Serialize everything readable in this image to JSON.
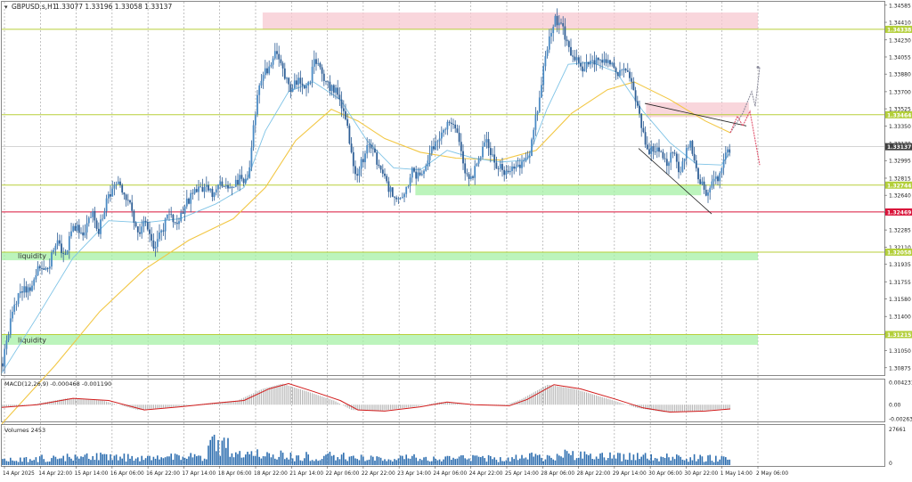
{
  "header": {
    "symbol_label": "GBPUSD.s,H1",
    "ohlc_label": "1.33077 1.33196 1.33058 1.33137"
  },
  "colors": {
    "candle_up": "#4a8ac4",
    "candle_down": "#2f5f96",
    "ma_fast": "#7ec3e6",
    "ma_slow": "#f2c744",
    "level_line": "#b8cf3a",
    "support_line": "#d9143a",
    "zone_green": "#a6f0a6",
    "zone_pink": "#f7c8d0",
    "macd_signal": "#d11a1a",
    "histogram": "#b8b8b8",
    "volume": "#2f6fb0",
    "projection_gray": "#8a8a9a",
    "projection_red": "#e0506a",
    "price_tag_bg": "#b3cf3a",
    "current_price_bg": "#404040",
    "support_tag_bg": "#d9143a"
  },
  "price_axis": {
    "ticks": [
      "1.34585",
      "1.34410",
      "1.34230",
      "1.34055",
      "1.33880",
      "1.33700",
      "1.33525",
      "1.33350",
      "1.33170",
      "1.32995",
      "1.32815",
      "1.32640",
      "1.32465",
      "1.32285",
      "1.32110",
      "1.31935",
      "1.31755",
      "1.31580",
      "1.31400",
      "1.31225",
      "1.31050",
      "1.30875"
    ],
    "ylim": [
      1.308,
      1.3462
    ],
    "tags": [
      {
        "name": "level-1-34338",
        "label": "1.34338",
        "price": 1.34338,
        "kind": "level"
      },
      {
        "name": "level-1-33464",
        "label": "1.33464",
        "price": 1.33464,
        "kind": "level"
      },
      {
        "name": "current-price",
        "label": "1.33137",
        "price": 1.33137,
        "kind": "current"
      },
      {
        "name": "level-1-32744",
        "label": "1.32744",
        "price": 1.32744,
        "kind": "level"
      },
      {
        "name": "support-1-32469",
        "label": "1.32469",
        "price": 1.32469,
        "kind": "support"
      },
      {
        "name": "level-1-32058",
        "label": "1.32058",
        "price": 1.32058,
        "kind": "level"
      },
      {
        "name": "level-1-31215",
        "label": "1.31215",
        "price": 1.31215,
        "kind": "level"
      }
    ]
  },
  "zones": [
    {
      "name": "supply-zone-top",
      "x0": 0.345,
      "x1": 1.0,
      "p_hi": 1.3451,
      "p_lo": 1.3434,
      "kind": "pink"
    },
    {
      "name": "supply-zone-right",
      "x0": 0.852,
      "x1": 0.988,
      "p_hi": 1.3359,
      "p_lo": 1.3344,
      "kind": "pink"
    },
    {
      "name": "demand-zone-mid",
      "x0": 0.547,
      "x1": 0.925,
      "p_hi": 1.32744,
      "p_lo": 1.3264,
      "kind": "green"
    },
    {
      "name": "liquidity-zone-upper",
      "x0": 0.0,
      "x1": 1.0,
      "p_hi": 1.32058,
      "p_lo": 1.31975,
      "kind": "green"
    },
    {
      "name": "liquidity-zone-lower",
      "x0": 0.0,
      "x1": 1.0,
      "p_hi": 1.31215,
      "p_lo": 1.3111,
      "kind": "green"
    }
  ],
  "zone_labels": [
    {
      "name": "liquidity-label-upper",
      "text": "liquidity",
      "price": 1.3202
    },
    {
      "name": "liquidity-label-lower",
      "text": "liquidity",
      "price": 1.3116
    }
  ],
  "time_axis": {
    "labels": [
      "14 Apr 2025",
      "14 Apr 22:00",
      "15 Apr 14:00",
      "16 Apr 06:00",
      "16 Apr 22:00",
      "17 Apr 14:00",
      "18 Apr 06:00",
      "18 Apr 22:00",
      "21 Apr 14:00",
      "22 Apr 06:00",
      "22 Apr 22:00",
      "23 Apr 14:00",
      "24 Apr 06:00",
      "24 Apr 22:00",
      "25 Apr 14:00",
      "28 Apr 06:00",
      "28 Apr 22:00",
      "29 Apr 14:00",
      "30 Apr 06:00",
      "30 Apr 22:00",
      "1 May 14:00",
      "2 May 06:00"
    ]
  },
  "macd": {
    "label": "MACD(12,26,9) -0.000468 -0.001190",
    "ticks": [
      "0.004231",
      "0.00",
      "-0.002632"
    ],
    "ylim": [
      -0.003,
      0.0046
    ]
  },
  "volumes": {
    "label": "Volumes 2453",
    "ticks": [
      "27661",
      "0"
    ],
    "ylim": [
      0,
      27661
    ]
  },
  "chart_data": {
    "type": "candlestick",
    "symbol": "GBPUSD",
    "timeframe": "H1",
    "indicators": [
      "MA (fast)",
      "MA (slow)",
      "MACD(12,26,9)",
      "Volumes"
    ],
    "price_path": [
      [
        0,
        1.3092
      ],
      [
        10,
        1.3141
      ],
      [
        20,
        1.317
      ],
      [
        30,
        1.3165
      ],
      [
        40,
        1.319
      ],
      [
        50,
        1.3188
      ],
      [
        60,
        1.3215
      ],
      [
        70,
        1.3205
      ],
      [
        80,
        1.3232
      ],
      [
        90,
        1.3225
      ],
      [
        100,
        1.3246
      ],
      [
        108,
        1.3228
      ],
      [
        118,
        1.3262
      ],
      [
        128,
        1.3276
      ],
      [
        138,
        1.3262
      ],
      [
        145,
        1.3248
      ],
      [
        152,
        1.3225
      ],
      [
        160,
        1.3236
      ],
      [
        170,
        1.3212
      ],
      [
        178,
        1.3226
      ],
      [
        186,
        1.3246
      ],
      [
        196,
        1.3232
      ],
      [
        206,
        1.3256
      ],
      [
        216,
        1.3268
      ],
      [
        226,
        1.3272
      ],
      [
        236,
        1.3264
      ],
      [
        246,
        1.3278
      ],
      [
        256,
        1.3272
      ],
      [
        266,
        1.328
      ],
      [
        276,
        1.3282
      ],
      [
        282,
        1.334
      ],
      [
        290,
        1.3385
      ],
      [
        298,
        1.3392
      ],
      [
        305,
        1.3408
      ],
      [
        314,
        1.3396
      ],
      [
        322,
        1.337
      ],
      [
        332,
        1.3382
      ],
      [
        342,
        1.3372
      ],
      [
        350,
        1.3402
      ],
      [
        358,
        1.3388
      ],
      [
        366,
        1.3375
      ],
      [
        376,
        1.3368
      ],
      [
        384,
        1.3348
      ],
      [
        392,
        1.3305
      ],
      [
        397,
        1.3278
      ],
      [
        402,
        1.3296
      ],
      [
        412,
        1.3316
      ],
      [
        422,
        1.3296
      ],
      [
        432,
        1.3272
      ],
      [
        440,
        1.3262
      ],
      [
        450,
        1.3266
      ],
      [
        460,
        1.3288
      ],
      [
        470,
        1.3282
      ],
      [
        480,
        1.3308
      ],
      [
        490,
        1.3325
      ],
      [
        500,
        1.3338
      ],
      [
        510,
        1.3332
      ],
      [
        518,
        1.3292
      ],
      [
        524,
        1.3276
      ],
      [
        534,
        1.3302
      ],
      [
        544,
        1.3318
      ],
      [
        554,
        1.3296
      ],
      [
        562,
        1.3288
      ],
      [
        572,
        1.329
      ],
      [
        580,
        1.3292
      ],
      [
        590,
        1.33
      ],
      [
        600,
        1.335
      ],
      [
        608,
        1.34
      ],
      [
        614,
        1.343
      ],
      [
        620,
        1.3445
      ],
      [
        628,
        1.3436
      ],
      [
        636,
        1.3415
      ],
      [
        644,
        1.3402
      ],
      [
        652,
        1.3395
      ],
      [
        660,
        1.3405
      ],
      [
        670,
        1.34
      ],
      [
        680,
        1.3398
      ],
      [
        690,
        1.339
      ],
      [
        698,
        1.3395
      ],
      [
        706,
        1.3378
      ],
      [
        712,
        1.336
      ],
      [
        718,
        1.333
      ],
      [
        724,
        1.331
      ],
      [
        734,
        1.3312
      ],
      [
        744,
        1.3296
      ],
      [
        754,
        1.3308
      ],
      [
        760,
        1.3284
      ],
      [
        766,
        1.3308
      ],
      [
        772,
        1.3322
      ],
      [
        778,
        1.3294
      ],
      [
        784,
        1.3276
      ],
      [
        790,
        1.3268
      ],
      [
        796,
        1.3276
      ],
      [
        804,
        1.3284
      ],
      [
        812,
        1.3306
      ],
      [
        818,
        1.3314
      ]
    ],
    "ma_fast_path": [
      [
        0,
        1.3082
      ],
      [
        40,
        1.314
      ],
      [
        80,
        1.32
      ],
      [
        120,
        1.3238
      ],
      [
        160,
        1.3236
      ],
      [
        200,
        1.324
      ],
      [
        240,
        1.3255
      ],
      [
        272,
        1.3272
      ],
      [
        296,
        1.333
      ],
      [
        322,
        1.337
      ],
      [
        350,
        1.338
      ],
      [
        380,
        1.3362
      ],
      [
        410,
        1.332
      ],
      [
        440,
        1.3292
      ],
      [
        470,
        1.329
      ],
      [
        500,
        1.331
      ],
      [
        530,
        1.3302
      ],
      [
        560,
        1.3298
      ],
      [
        590,
        1.33
      ],
      [
        612,
        1.3352
      ],
      [
        636,
        1.3398
      ],
      [
        662,
        1.34
      ],
      [
        690,
        1.339
      ],
      [
        720,
        1.335
      ],
      [
        750,
        1.3318
      ],
      [
        780,
        1.3296
      ],
      [
        808,
        1.3295
      ],
      [
        818,
        1.3308
      ]
    ],
    "ma_slow_path": [
      [
        0,
        1.303
      ],
      [
        60,
        1.309
      ],
      [
        110,
        1.3145
      ],
      [
        160,
        1.3188
      ],
      [
        210,
        1.3218
      ],
      [
        260,
        1.324
      ],
      [
        296,
        1.3272
      ],
      [
        330,
        1.332
      ],
      [
        370,
        1.3352
      ],
      [
        400,
        1.334
      ],
      [
        430,
        1.3322
      ],
      [
        470,
        1.3308
      ],
      [
        510,
        1.3302
      ],
      [
        560,
        1.33
      ],
      [
        600,
        1.331
      ],
      [
        640,
        1.3348
      ],
      [
        680,
        1.3372
      ],
      [
        710,
        1.338
      ],
      [
        750,
        1.3362
      ],
      [
        790,
        1.334
      ],
      [
        818,
        1.3328
      ]
    ],
    "projections": [
      {
        "name": "projection-up-gray",
        "kind": "gray",
        "path": [
          [
            818,
            1.3328
          ],
          [
            832,
            1.3348
          ],
          [
            842,
            1.337
          ],
          [
            846,
            1.3355
          ],
          [
            851,
            1.3395
          ]
        ]
      },
      {
        "name": "projection-red",
        "kind": "red",
        "path": [
          [
            818,
            1.3328
          ],
          [
            826,
            1.3345
          ],
          [
            832,
            1.3335
          ],
          [
            840,
            1.335
          ],
          [
            846,
            1.332
          ],
          [
            851,
            1.3295
          ]
        ]
      }
    ],
    "wedge_lines": [
      {
        "name": "wedge-upper-line",
        "p0": [
          722,
          1.3358
        ],
        "p1": [
          836,
          1.3335
        ]
      },
      {
        "name": "wedge-lower-line",
        "p0": [
          715,
          1.3312
        ],
        "p1": [
          797,
          1.3245
        ]
      }
    ],
    "macd_path": [
      [
        0,
        -0.0005
      ],
      [
        40,
        0.0
      ],
      [
        80,
        0.0012
      ],
      [
        120,
        0.0008
      ],
      [
        160,
        -0.001
      ],
      [
        200,
        -0.0004
      ],
      [
        240,
        0.0003
      ],
      [
        272,
        0.0008
      ],
      [
        300,
        0.003
      ],
      [
        322,
        0.004
      ],
      [
        350,
        0.0025
      ],
      [
        380,
        0.0008
      ],
      [
        400,
        -0.001
      ],
      [
        430,
        -0.0012
      ],
      [
        470,
        -0.0004
      ],
      [
        500,
        0.0005
      ],
      [
        530,
        0.0
      ],
      [
        570,
        -0.0002
      ],
      [
        590,
        0.001
      ],
      [
        620,
        0.0038
      ],
      [
        650,
        0.003
      ],
      [
        690,
        0.001
      ],
      [
        720,
        -0.0006
      ],
      [
        750,
        -0.0014
      ],
      [
        790,
        -0.0012
      ],
      [
        818,
        -0.0008
      ]
    ],
    "volume_profile": [
      [
        0,
        0.15
      ],
      [
        40,
        0.22
      ],
      [
        80,
        0.25
      ],
      [
        120,
        0.28
      ],
      [
        160,
        0.24
      ],
      [
        200,
        0.26
      ],
      [
        226,
        0.3
      ],
      [
        236,
        0.7
      ],
      [
        250,
        0.62
      ],
      [
        270,
        0.4
      ],
      [
        296,
        0.35
      ],
      [
        330,
        0.28
      ],
      [
        370,
        0.3
      ],
      [
        400,
        0.25
      ],
      [
        440,
        0.22
      ],
      [
        480,
        0.24
      ],
      [
        520,
        0.23
      ],
      [
        560,
        0.22
      ],
      [
        600,
        0.28
      ],
      [
        630,
        0.35
      ],
      [
        660,
        0.3
      ],
      [
        700,
        0.28
      ],
      [
        740,
        0.25
      ],
      [
        780,
        0.24
      ],
      [
        818,
        0.2
      ]
    ]
  }
}
